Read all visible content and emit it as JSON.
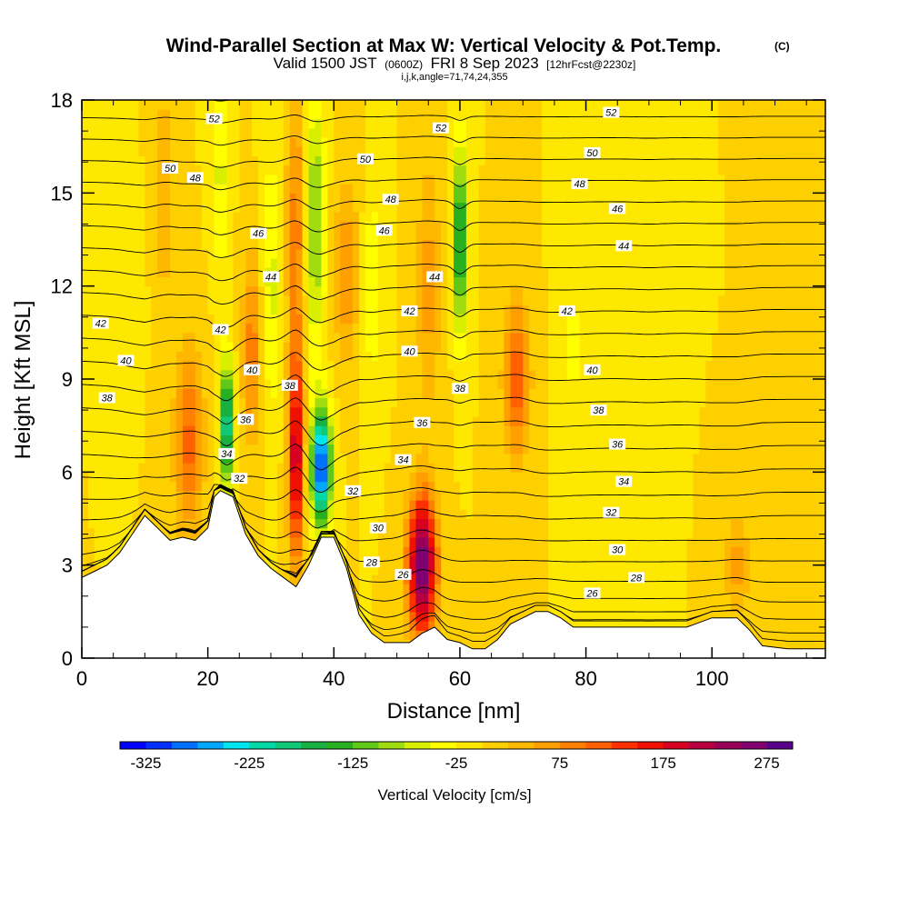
{
  "chart_data": {
    "type": "heatmap",
    "title": "Wind-Parallel Section at Max W: Vertical Velocity & Pot.Temp.",
    "title_mark": "(C)",
    "subtitle_parts": [
      "Valid 1500 JST",
      "(0600Z)",
      "FRI 8 Sep 2023",
      "[12hrFcst@2230z]"
    ],
    "subtitle2": "i,j,k,angle=71,74,24,355",
    "xlabel": "Distance [nm]",
    "ylabel": "Height [Kft MSL]",
    "xlim": [
      0,
      118
    ],
    "ylim": [
      0,
      18
    ],
    "xticks": [
      0,
      20,
      40,
      60,
      80,
      100
    ],
    "yticks": [
      0,
      3,
      6,
      9,
      12,
      15,
      18
    ],
    "colorbar": {
      "title": "Vertical Velocity [cm/s]",
      "range": [
        -350,
        300
      ],
      "tick_values": [
        -325,
        -225,
        -125,
        -25,
        75,
        175,
        275
      ],
      "tick_labels": [
        "-325",
        "-225",
        "-125",
        "-25",
        "75",
        "175",
        "275"
      ],
      "colors": [
        "#0000ff",
        "#0030ff",
        "#0070ff",
        "#00a8ff",
        "#00e6f0",
        "#00d8a8",
        "#10c878",
        "#18b040",
        "#28b020",
        "#60c818",
        "#a0dc10",
        "#d8f000",
        "#ffff00",
        "#ffe800",
        "#ffd000",
        "#ffb800",
        "#ffa000",
        "#ff8000",
        "#ff6000",
        "#ff3000",
        "#f01000",
        "#d80020",
        "#b80040",
        "#980058",
        "#800070",
        "#580088"
      ]
    },
    "terrain_x": [
      0,
      2,
      4,
      6,
      8,
      10,
      12,
      14,
      16,
      18,
      20,
      21,
      22,
      24,
      26,
      28,
      30,
      32,
      34,
      36,
      38,
      40,
      42,
      44,
      46,
      48,
      50,
      52,
      54,
      56,
      58,
      60,
      62,
      64,
      66,
      68,
      70,
      72,
      74,
      76,
      78,
      80,
      84,
      88,
      92,
      96,
      100,
      104,
      106,
      108,
      112,
      116,
      118
    ],
    "terrain_y": [
      2.6,
      2.8,
      3.0,
      3.4,
      4.0,
      4.6,
      4.2,
      3.8,
      3.9,
      3.8,
      4.2,
      5.2,
      5.4,
      5.2,
      4.0,
      3.3,
      2.9,
      2.6,
      2.3,
      3.0,
      3.9,
      3.9,
      2.9,
      1.4,
      0.8,
      0.5,
      0.5,
      0.5,
      0.8,
      1.0,
      0.6,
      0.5,
      0.3,
      0.3,
      0.6,
      1.1,
      1.3,
      1.5,
      1.5,
      1.3,
      1.0,
      1.0,
      1.0,
      1.0,
      1.0,
      1.0,
      1.3,
      1.3,
      0.9,
      0.4,
      0.3,
      0.3,
      0.3
    ],
    "w_cells": [
      {
        "x": 17,
        "y": 7.0,
        "sx": 2.2,
        "sy": 3.0,
        "w": 110
      },
      {
        "x": 13,
        "y": 15.0,
        "sx": 1.4,
        "sy": 3.5,
        "w": 50
      },
      {
        "x": 8,
        "y": 12.0,
        "sx": 1.5,
        "sy": 2.0,
        "w": -15
      },
      {
        "x": 23,
        "y": 7.5,
        "sx": 1.0,
        "sy": 2.0,
        "w": -230
      },
      {
        "x": 22,
        "y": 15.5,
        "sx": 1.2,
        "sy": 3.0,
        "w": -60
      },
      {
        "x": 27,
        "y": 10.0,
        "sx": 1.5,
        "sy": 3.0,
        "w": 90
      },
      {
        "x": 30,
        "y": 12.0,
        "sx": 1.5,
        "sy": 4.0,
        "w": -60
      },
      {
        "x": 34,
        "y": 6.5,
        "sx": 1.2,
        "sy": 3.5,
        "w": 210
      },
      {
        "x": 34,
        "y": 14.0,
        "sx": 1.5,
        "sy": 4.0,
        "w": 90
      },
      {
        "x": 38,
        "y": 6.2,
        "sx": 1.5,
        "sy": 1.8,
        "w": -330
      },
      {
        "x": 37,
        "y": 14.0,
        "sx": 1.5,
        "sy": 4.0,
        "w": -110
      },
      {
        "x": 42,
        "y": 12.5,
        "sx": 2.0,
        "sy": 3.0,
        "w": 70
      },
      {
        "x": 46,
        "y": 12.0,
        "sx": 1.5,
        "sy": 3.0,
        "w": -50
      },
      {
        "x": 54,
        "y": 3.0,
        "sx": 2.2,
        "sy": 2.2,
        "w": 290
      },
      {
        "x": 55,
        "y": 12.0,
        "sx": 2.0,
        "sy": 4.0,
        "w": 60
      },
      {
        "x": 60,
        "y": 13.5,
        "sx": 0.9,
        "sy": 3.0,
        "w": -200
      },
      {
        "x": 69,
        "y": 9.0,
        "sx": 2.0,
        "sy": 2.5,
        "w": 120
      },
      {
        "x": 78,
        "y": 10.0,
        "sx": 2.0,
        "sy": 3.0,
        "w": -30
      },
      {
        "x": 90,
        "y": 11.0,
        "sx": 2.0,
        "sy": 4.0,
        "w": -25
      },
      {
        "x": 104,
        "y": 3.0,
        "sx": 2.0,
        "sy": 1.5,
        "w": 60
      }
    ],
    "theta_levels": [
      26,
      27,
      28,
      29,
      30,
      31,
      32,
      33,
      34,
      35,
      36,
      37,
      38,
      39,
      40,
      41,
      42,
      43,
      44,
      45,
      46,
      47,
      48,
      49,
      50,
      51,
      52
    ],
    "contour_labels": [
      {
        "text": "52",
        "x": 21,
        "y": 17.4
      },
      {
        "text": "52",
        "x": 57,
        "y": 17.1
      },
      {
        "text": "52",
        "x": 84,
        "y": 17.6
      },
      {
        "text": "50",
        "x": 14,
        "y": 15.8
      },
      {
        "text": "50",
        "x": 45,
        "y": 16.1
      },
      {
        "text": "50",
        "x": 81,
        "y": 16.3
      },
      {
        "text": "48",
        "x": 18,
        "y": 15.5
      },
      {
        "text": "48",
        "x": 49,
        "y": 14.8
      },
      {
        "text": "48",
        "x": 79,
        "y": 15.3
      },
      {
        "text": "46",
        "x": 28,
        "y": 13.7
      },
      {
        "text": "46",
        "x": 48,
        "y": 13.8
      },
      {
        "text": "46",
        "x": 85,
        "y": 14.5
      },
      {
        "text": "44",
        "x": 30,
        "y": 12.3
      },
      {
        "text": "44",
        "x": 56,
        "y": 12.3
      },
      {
        "text": "44",
        "x": 86,
        "y": 13.3
      },
      {
        "text": "42",
        "x": 3,
        "y": 10.8
      },
      {
        "text": "42",
        "x": 22,
        "y": 10.6
      },
      {
        "text": "42",
        "x": 52,
        "y": 11.2
      },
      {
        "text": "42",
        "x": 77,
        "y": 11.2
      },
      {
        "text": "40",
        "x": 7,
        "y": 9.6
      },
      {
        "text": "40",
        "x": 27,
        "y": 9.3
      },
      {
        "text": "40",
        "x": 52,
        "y": 9.9
      },
      {
        "text": "40",
        "x": 81,
        "y": 9.3
      },
      {
        "text": "38",
        "x": 4,
        "y": 8.4
      },
      {
        "text": "38",
        "x": 33,
        "y": 8.8
      },
      {
        "text": "38",
        "x": 60,
        "y": 8.7
      },
      {
        "text": "38",
        "x": 82,
        "y": 8.0
      },
      {
        "text": "36",
        "x": 26,
        "y": 7.7
      },
      {
        "text": "36",
        "x": 54,
        "y": 7.6
      },
      {
        "text": "36",
        "x": 85,
        "y": 6.9
      },
      {
        "text": "34",
        "x": 23,
        "y": 6.6
      },
      {
        "text": "34",
        "x": 51,
        "y": 6.4
      },
      {
        "text": "34",
        "x": 86,
        "y": 5.7
      },
      {
        "text": "32",
        "x": 25,
        "y": 5.8
      },
      {
        "text": "32",
        "x": 43,
        "y": 5.4
      },
      {
        "text": "32",
        "x": 84,
        "y": 4.7
      },
      {
        "text": "30",
        "x": 47,
        "y": 4.2
      },
      {
        "text": "30",
        "x": 85,
        "y": 3.5
      },
      {
        "text": "28",
        "x": 46,
        "y": 3.1
      },
      {
        "text": "28",
        "x": 88,
        "y": 2.6
      },
      {
        "text": "26",
        "x": 51,
        "y": 2.7
      },
      {
        "text": "26",
        "x": 81,
        "y": 2.1
      }
    ]
  }
}
